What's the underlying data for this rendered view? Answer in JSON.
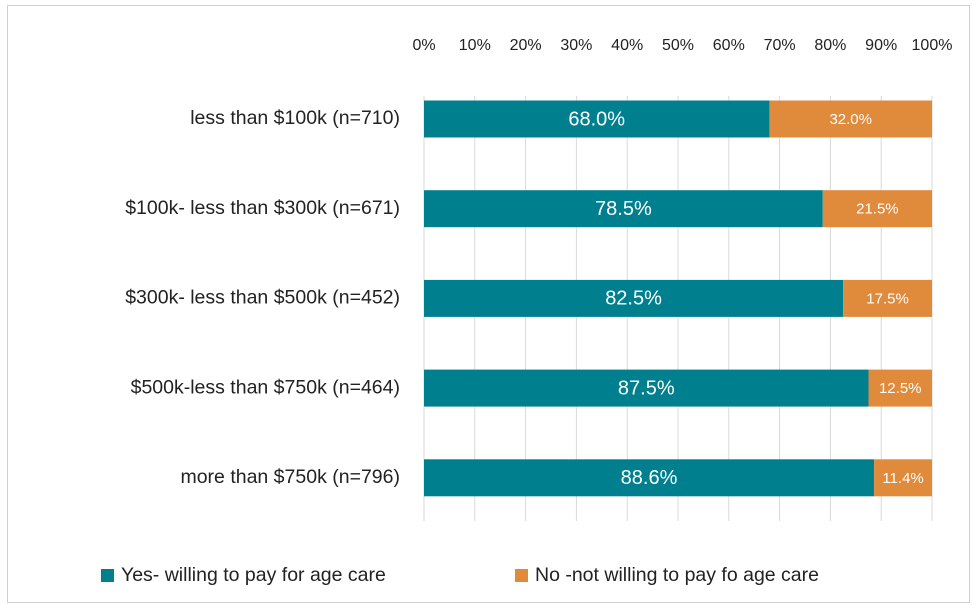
{
  "chart_data": {
    "type": "bar",
    "orientation": "horizontal",
    "stacked": true,
    "categories": [
      "less than $100k (n=710)",
      "$100k- less than $300k (n=671)",
      "$300k- less than $500k (n=452)",
      "$500k-less than $750k (n=464)",
      "more than $750k (n=796)"
    ],
    "series": [
      {
        "name": "Yes- willing to pay for age care",
        "color": "#00808f",
        "values": [
          68.0,
          78.5,
          82.5,
          87.5,
          88.6
        ],
        "value_labels": [
          "68.0%",
          "78.5%",
          "82.5%",
          "87.5%",
          "88.6%"
        ]
      },
      {
        "name": "No -not willing to pay fo age care",
        "color": "#e08a3c",
        "values": [
          32.0,
          21.5,
          17.5,
          12.5,
          11.4
        ],
        "value_labels": [
          "32.0%",
          "21.5%",
          "17.5%",
          "12.5%",
          "11.4%"
        ]
      }
    ],
    "xlim": [
      0,
      100
    ],
    "xticks": [
      {
        "value": 0,
        "label": "0%"
      },
      {
        "value": 10,
        "label": "10%"
      },
      {
        "value": 20,
        "label": "20%"
      },
      {
        "value": 30,
        "label": "30%"
      },
      {
        "value": 40,
        "label": "40%"
      },
      {
        "value": 50,
        "label": "50%"
      },
      {
        "value": 60,
        "label": "60%"
      },
      {
        "value": 70,
        "label": "70%"
      },
      {
        "value": 80,
        "label": "80%"
      },
      {
        "value": 90,
        "label": "90%"
      },
      {
        "value": 100,
        "label": "100%"
      }
    ],
    "grid": true,
    "legend": "bottom"
  }
}
